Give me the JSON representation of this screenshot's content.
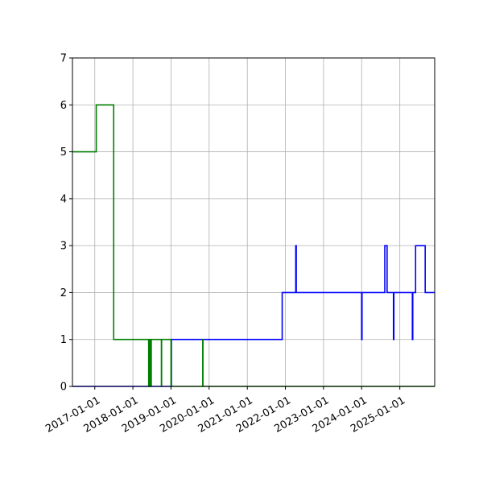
{
  "chart_data": {
    "type": "line",
    "title": "",
    "xlabel": "",
    "ylabel": "",
    "x_type": "date",
    "xlim": [
      "2016-06-01",
      "2025-12-01"
    ],
    "ylim": [
      0,
      7
    ],
    "grid": true,
    "x_ticks": [
      "2017-01-01",
      "2018-01-01",
      "2019-01-01",
      "2020-01-01",
      "2021-01-01",
      "2022-01-01",
      "2023-01-01",
      "2024-01-01",
      "2025-01-01"
    ],
    "y_ticks": [
      "0",
      "1",
      "2",
      "3",
      "4",
      "5",
      "6",
      "7"
    ],
    "series": [
      {
        "color": "#0000ff",
        "drawstyle": "steps-post",
        "points": [
          [
            "2016-06-01",
            0
          ],
          [
            "2019-01-05",
            1
          ],
          [
            "2021-12-01",
            2
          ],
          [
            "2022-04-10",
            3
          ],
          [
            "2022-04-15",
            2
          ],
          [
            "2024-01-01",
            1
          ],
          [
            "2024-01-05",
            2
          ],
          [
            "2024-08-10",
            3
          ],
          [
            "2024-09-01",
            2
          ],
          [
            "2024-11-01",
            1
          ],
          [
            "2024-11-05",
            2
          ],
          [
            "2025-05-01",
            1
          ],
          [
            "2025-05-05",
            2
          ],
          [
            "2025-06-01",
            3
          ],
          [
            "2025-09-01",
            2
          ],
          [
            "2025-12-01",
            2
          ]
        ]
      },
      {
        "color": "#008000",
        "drawstyle": "steps-post",
        "points": [
          [
            "2016-06-01",
            5
          ],
          [
            "2017-01-15",
            6
          ],
          [
            "2017-07-01",
            1
          ],
          [
            "2018-06-01",
            0
          ],
          [
            "2018-06-03",
            1
          ],
          [
            "2018-06-08",
            0
          ],
          [
            "2018-06-10",
            1
          ],
          [
            "2018-06-16",
            0
          ],
          [
            "2018-06-18",
            1
          ],
          [
            "2018-06-24",
            0
          ],
          [
            "2018-06-26",
            1
          ],
          [
            "2018-10-01",
            0
          ],
          [
            "2018-10-03",
            1
          ],
          [
            "2019-01-01",
            0
          ],
          [
            "2019-11-01",
            1
          ],
          [
            "2019-11-03",
            0
          ],
          [
            "2025-12-01",
            0
          ]
        ]
      }
    ]
  }
}
